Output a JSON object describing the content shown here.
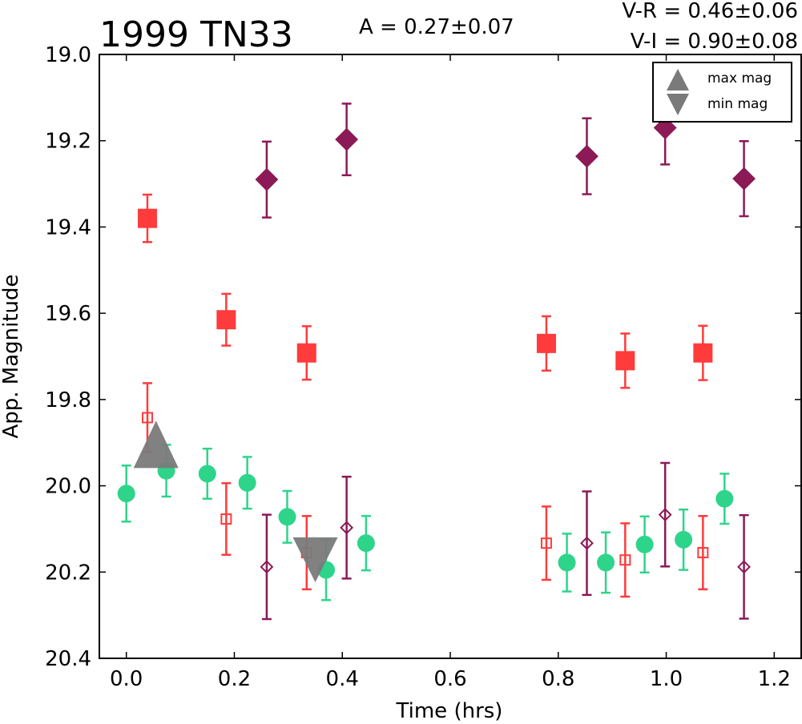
{
  "chart_data": {
    "type": "scatter",
    "title": "1999 TN33",
    "annotations": {
      "amplitude": "A  = 0.27±0.07",
      "v_r": "V-R = 0.46±0.06",
      "v_i": "V-I  = 0.90±0.08"
    },
    "xlabel": "Time (hrs)",
    "ylabel": "App. Magnitude",
    "xlim": [
      -0.05,
      1.25
    ],
    "ylim": [
      20.4,
      19.0
    ],
    "y_inverted": true,
    "xticks": [
      0.0,
      0.2,
      0.4,
      0.6,
      0.8,
      1.0,
      1.2
    ],
    "xtick_labels": [
      "0.0",
      "0.2",
      "0.4",
      "0.6",
      "0.8",
      "1.0",
      "1.2"
    ],
    "yticks": [
      19.0,
      19.2,
      19.4,
      19.6,
      19.8,
      20.0,
      20.2,
      20.4
    ],
    "ytick_labels": [
      "19.0",
      "19.2",
      "19.4",
      "19.6",
      "19.8",
      "20.0",
      "20.2",
      "20.4"
    ],
    "grid": false,
    "legend_position": "top-right",
    "legend": [
      {
        "label": "max mag",
        "marker": "triangle-up",
        "color": "#7a7a7a"
      },
      {
        "label": "min mag",
        "marker": "triangle-down",
        "color": "#7a7a7a"
      }
    ],
    "series": [
      {
        "marker": "square",
        "filled": true,
        "color": "#ff3b3b",
        "points": [
          {
            "x": 0.039,
            "y": 19.38,
            "err": 0.055
          },
          {
            "x": 0.185,
            "y": 19.615,
            "err": 0.06
          },
          {
            "x": 0.334,
            "y": 19.692,
            "err": 0.062
          },
          {
            "x": 0.778,
            "y": 19.67,
            "err": 0.063
          },
          {
            "x": 0.924,
            "y": 19.71,
            "err": 0.063
          },
          {
            "x": 1.068,
            "y": 19.692,
            "err": 0.063
          }
        ]
      },
      {
        "marker": "square",
        "filled": false,
        "color": "#ff3b3b",
        "points": [
          {
            "x": 0.039,
            "y": 19.842,
            "err": 0.08
          },
          {
            "x": 0.185,
            "y": 20.077,
            "err": 0.083
          },
          {
            "x": 0.334,
            "y": 20.155,
            "err": 0.085
          },
          {
            "x": 0.778,
            "y": 20.133,
            "err": 0.085
          },
          {
            "x": 0.924,
            "y": 20.172,
            "err": 0.085
          },
          {
            "x": 1.068,
            "y": 20.155,
            "err": 0.085
          }
        ]
      },
      {
        "marker": "diamond",
        "filled": true,
        "color": "#8b1a56",
        "points": [
          {
            "x": 0.26,
            "y": 19.29,
            "err": 0.088
          },
          {
            "x": 0.408,
            "y": 19.197,
            "err": 0.083
          },
          {
            "x": 0.853,
            "y": 19.236,
            "err": 0.088
          },
          {
            "x": 0.998,
            "y": 19.17,
            "err": 0.085
          },
          {
            "x": 1.144,
            "y": 19.288,
            "err": 0.087
          }
        ]
      },
      {
        "marker": "diamond",
        "filled": false,
        "color": "#8b1a56",
        "points": [
          {
            "x": 0.26,
            "y": 20.188,
            "err": 0.121
          },
          {
            "x": 0.408,
            "y": 20.097,
            "err": 0.118
          },
          {
            "x": 0.853,
            "y": 20.133,
            "err": 0.12
          },
          {
            "x": 0.998,
            "y": 20.067,
            "err": 0.12
          },
          {
            "x": 1.144,
            "y": 20.188,
            "err": 0.12
          }
        ]
      },
      {
        "marker": "circle",
        "filled": true,
        "color": "#2ed48a",
        "points": [
          {
            "x": 0.0,
            "y": 20.018,
            "err": 0.065
          },
          {
            "x": 0.074,
            "y": 19.965,
            "err": 0.06
          },
          {
            "x": 0.15,
            "y": 19.972,
            "err": 0.058
          },
          {
            "x": 0.224,
            "y": 19.993,
            "err": 0.06
          },
          {
            "x": 0.298,
            "y": 20.072,
            "err": 0.06
          },
          {
            "x": 0.37,
            "y": 20.195,
            "err": 0.07
          },
          {
            "x": 0.444,
            "y": 20.133,
            "err": 0.063
          },
          {
            "x": 0.816,
            "y": 20.178,
            "err": 0.067
          },
          {
            "x": 0.888,
            "y": 20.178,
            "err": 0.07
          },
          {
            "x": 0.96,
            "y": 20.136,
            "err": 0.065
          },
          {
            "x": 1.032,
            "y": 20.125,
            "err": 0.07
          },
          {
            "x": 1.108,
            "y": 20.03,
            "err": 0.058
          }
        ]
      }
    ],
    "extrema": [
      {
        "type": "max",
        "x": 0.055,
        "y": 19.905,
        "color": "#7a7a7a"
      },
      {
        "type": "min",
        "x": 0.35,
        "y": 20.168,
        "color": "#7a7a7a"
      }
    ]
  }
}
